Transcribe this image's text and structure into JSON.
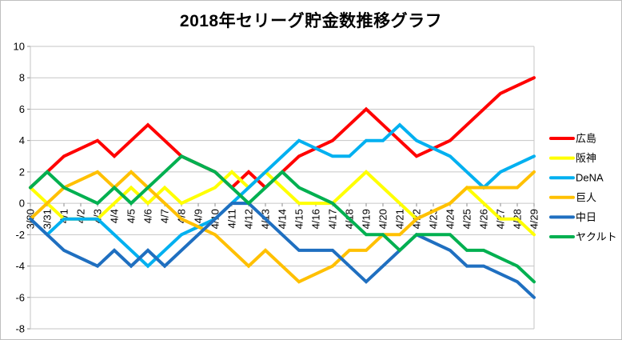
{
  "chart_data": {
    "type": "line",
    "title": "2018年セリーグ貯金数推移グラフ",
    "xlabel": "",
    "ylabel": "",
    "ylim": [
      -8,
      10
    ],
    "ytick_step": 2,
    "y_tick_labels": [
      "10",
      "8",
      "6",
      "4",
      "2",
      "0",
      "-2",
      "-4",
      "-6",
      "-8"
    ],
    "grid": "horizontal",
    "legend_position": "right",
    "gridline_color": "#c6c6c6",
    "x_labels": [
      "3/30",
      "3/31",
      "4/1",
      "4/2",
      "4/3",
      "4/4",
      "4/5",
      "4/6",
      "4/7",
      "4/8",
      "4/9",
      "4/10",
      "4/11",
      "4/12",
      "4/13",
      "4/14",
      "4/15",
      "4/16",
      "4/17",
      "4/18",
      "4/19",
      "4/20",
      "4/21",
      "4/22",
      "4/23",
      "4/24",
      "4/25",
      "4/26",
      "4/27",
      "4/28",
      "4/29"
    ],
    "series": [
      {
        "name": "広島",
        "key": "hiroshima",
        "color": "#FF0000",
        "values": [
          1,
          2,
          3,
          null,
          4,
          3,
          4,
          5,
          4,
          3,
          null,
          2,
          1,
          2,
          1,
          2,
          3,
          null,
          4,
          5,
          6,
          5,
          4,
          3,
          null,
          4,
          5,
          6,
          7,
          null,
          8
        ]
      },
      {
        "name": "阪神",
        "key": "hanshin",
        "color": "#FFFF00",
        "values": [
          1,
          0,
          -1,
          null,
          -1,
          0,
          1,
          0,
          1,
          0,
          null,
          1,
          2,
          1,
          2,
          1,
          0,
          null,
          0,
          1,
          2,
          1,
          0,
          -1,
          null,
          0,
          1,
          0,
          -1,
          -1,
          -2
        ]
      },
      {
        "name": "DeNA",
        "key": "dena",
        "color": "#00B0F0",
        "values": [
          -1,
          -2,
          -1,
          null,
          -1,
          -2,
          -3,
          -4,
          -3,
          -2,
          null,
          -1,
          0,
          1,
          2,
          3,
          4,
          null,
          3,
          3,
          4,
          4,
          5,
          4,
          null,
          3,
          2,
          1,
          2,
          null,
          3
        ]
      },
      {
        "name": "巨人",
        "key": "kyojin",
        "color": "#FFC000",
        "values": [
          -1,
          0,
          1,
          null,
          2,
          1,
          2,
          1,
          0,
          -1,
          null,
          -2,
          -3,
          -4,
          -3,
          -4,
          -5,
          null,
          -4,
          -3,
          -3,
          -2,
          -2,
          -1,
          null,
          0,
          1,
          1,
          1,
          1,
          2
        ]
      },
      {
        "name": "中日",
        "key": "chunichi",
        "color": "#1F6FC0",
        "values": [
          -1,
          -2,
          -3,
          null,
          -4,
          -3,
          -4,
          -3,
          -4,
          -3,
          null,
          -1,
          0,
          0,
          -1,
          -2,
          -3,
          null,
          -3,
          -4,
          -5,
          -4,
          -3,
          -2,
          null,
          -3,
          -4,
          -4,
          null,
          -5,
          -6
        ]
      },
      {
        "name": "ヤクルト",
        "key": "yakult",
        "color": "#00B050",
        "values": [
          1,
          2,
          1,
          null,
          0,
          1,
          0,
          1,
          2,
          3,
          null,
          2,
          1,
          0,
          1,
          2,
          1,
          null,
          0,
          -1,
          -2,
          -2,
          -3,
          -2,
          null,
          -2,
          -3,
          -3,
          null,
          -4,
          -5
        ]
      }
    ]
  }
}
